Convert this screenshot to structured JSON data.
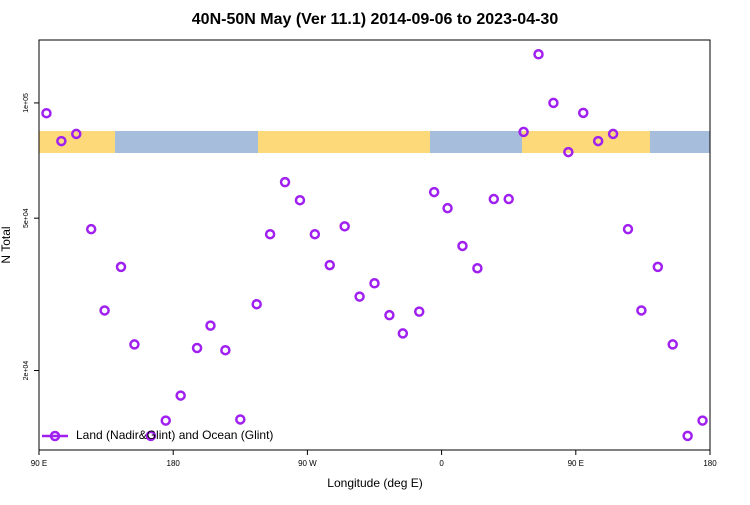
{
  "chart_data": {
    "type": "scatter",
    "title": "40N-50N May (Ver 11.1)   2014-09-06 to 2023-04-30",
    "x_label": "Longitude (deg E)",
    "y_label": "N Total",
    "x": [
      95,
      105,
      115,
      125,
      134,
      145,
      154,
      165,
      175,
      185,
      196,
      205,
      215,
      225,
      236,
      245,
      255,
      265,
      275,
      285,
      295,
      305,
      315,
      325,
      334,
      345,
      355,
      364,
      374,
      384,
      395,
      405,
      415,
      425,
      435,
      445,
      455,
      465,
      475,
      485,
      494,
      505,
      515,
      525,
      535
    ],
    "series": [
      {
        "name": "Land (Nadir&Glint) and Ocean (Glint)",
        "color": "#a020f0",
        "values": [
          94000,
          79500,
          83000,
          46800,
          28700,
          37300,
          23400,
          13500,
          14800,
          17200,
          22900,
          26200,
          22600,
          14900,
          29800,
          45400,
          62100,
          55700,
          45400,
          37700,
          47600,
          31200,
          33800,
          27900,
          25000,
          28500,
          58500,
          53100,
          42300,
          37000,
          56100,
          56100,
          84000,
          134000,
          100000,
          74400,
          94200,
          79500,
          83000,
          46800,
          28700,
          37300,
          23400,
          13500,
          14800
        ]
      }
    ],
    "xlim": [
      90,
      540
    ],
    "xticks": [
      {
        "value": 90,
        "label": "90 E"
      },
      180,
      {
        "value": 270,
        "label": "90 W"
      },
      {
        "value": 360,
        "label": "0"
      },
      {
        "value": 450,
        "label": "90 E"
      },
      {
        "value": 540,
        "label": "180"
      }
    ],
    "ylim": [
      12400,
      146000
    ],
    "y_scale": "log",
    "yticks": [
      {
        "value": 20000,
        "label": "2e+04"
      },
      {
        "value": 50000,
        "label": "5e+04"
      },
      {
        "value": 100000,
        "label": "1e+05"
      }
    ],
    "legend": "bottom-left"
  }
}
